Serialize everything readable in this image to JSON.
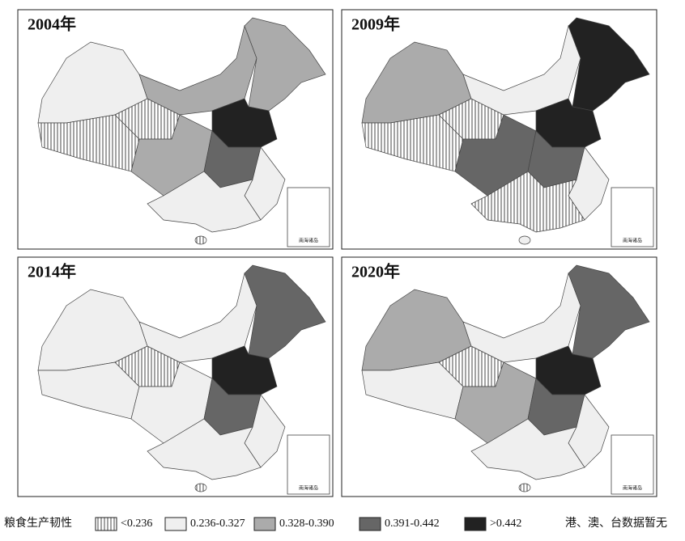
{
  "panels": [
    {
      "title": "2004年"
    },
    {
      "title": "2009年"
    },
    {
      "title": "2014年"
    },
    {
      "title": "2020年"
    }
  ],
  "inset_label": "南海诸岛",
  "legend": {
    "title": "粮食生产韧性",
    "items": [
      {
        "label": "<0.236"
      },
      {
        "label": "0.236-0.327"
      },
      {
        "label": "0.328-0.390"
      },
      {
        "label": "0.391-0.442"
      },
      {
        "label": ">0.442"
      }
    ],
    "note": "港、澳、台数据暂无"
  }
}
